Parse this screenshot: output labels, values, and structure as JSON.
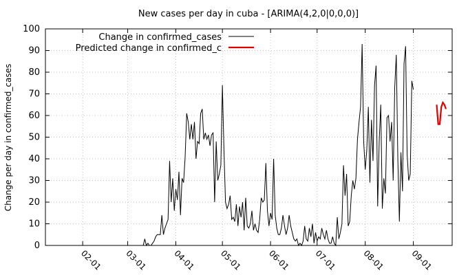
{
  "chart_data": {
    "type": "line",
    "title": "New cases per day in cuba -  [ARIMA(4,2,0|0,0,0)]",
    "xlabel": "",
    "ylabel": "Change per day in confirmed_cases",
    "ylim": [
      0,
      100
    ],
    "yticks": [
      0,
      10,
      20,
      30,
      40,
      50,
      60,
      70,
      80,
      90,
      100
    ],
    "xlim": [
      "2020-01-08",
      "2020-09-26"
    ],
    "xticks": [
      {
        "date": "2020-02-01",
        "label": "02-01"
      },
      {
        "date": "2020-03-01",
        "label": "03-01"
      },
      {
        "date": "2020-04-01",
        "label": "04-01"
      },
      {
        "date": "2020-05-01",
        "label": "05-01"
      },
      {
        "date": "2020-06-01",
        "label": "06-01"
      },
      {
        "date": "2020-07-01",
        "label": "07-01"
      },
      {
        "date": "2020-08-01",
        "label": "08-01"
      },
      {
        "date": "2020-09-01",
        "label": "09-01"
      }
    ],
    "grid": true,
    "legend_position": "top-left",
    "series": [
      {
        "name": "Change in confirmed_cases",
        "color": "#000000",
        "x_start": "2020-03-11",
        "values": [
          0,
          3,
          0,
          1,
          0,
          0,
          1,
          2,
          4,
          5,
          5,
          5,
          14,
          5,
          8,
          10,
          12,
          39,
          20,
          31,
          16,
          26,
          21,
          34,
          14,
          31,
          29,
          41,
          61,
          57,
          49,
          56,
          49,
          57,
          40,
          48,
          47,
          61,
          63,
          49,
          52,
          49,
          51,
          46,
          51,
          52,
          20,
          48,
          30,
          33,
          37,
          74,
          44,
          20,
          17,
          19,
          23,
          12,
          13,
          11,
          19,
          9,
          18,
          13,
          20,
          7,
          22,
          9,
          8,
          10,
          16,
          7,
          10,
          7,
          6,
          12,
          22,
          20,
          21,
          38,
          16,
          9,
          15,
          12,
          40,
          14,
          8,
          5,
          5,
          8,
          14,
          9,
          5,
          8,
          14,
          9,
          6,
          3,
          2,
          3,
          0,
          1,
          0,
          2,
          9,
          3,
          2,
          8,
          4,
          10,
          1,
          6,
          2,
          4,
          3,
          8,
          5,
          3,
          7,
          3,
          1,
          1,
          4,
          1,
          0,
          13,
          3,
          6,
          10,
          37,
          23,
          33,
          9,
          11,
          23,
          30,
          26,
          31,
          49,
          57,
          64,
          93,
          48,
          35,
          44,
          64,
          29,
          58,
          39,
          74,
          83,
          18,
          48,
          65,
          17,
          31,
          24,
          59,
          60,
          48,
          57,
          30,
          73,
          88,
          40,
          11,
          43,
          25,
          84,
          92,
          42,
          30,
          33,
          76,
          72
        ],
        "line_width": 1
      },
      {
        "name": "Predicted change in confirmed_c",
        "color": "#e00000",
        "x_start": "2020-09-16",
        "values": [
          65,
          56,
          56,
          64,
          66,
          65,
          63
        ],
        "line_width": 2.2
      }
    ]
  }
}
